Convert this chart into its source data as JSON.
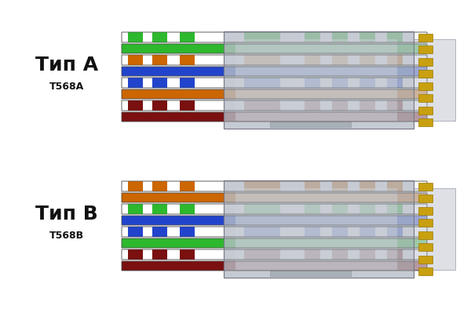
{
  "background_color": "#ffffff",
  "label_A": "Тип A",
  "label_A_sub": "T568A",
  "label_B": "Тип B",
  "label_B_sub": "T568B",
  "label_fontsize": 18,
  "sublabel_fontsize": 9,
  "T568A_wires": [
    {
      "base": "#ffffff",
      "stripe": "#2db82d",
      "solid": false
    },
    {
      "base": "#2db82d",
      "stripe": null,
      "solid": true
    },
    {
      "base": "#ffffff",
      "stripe": "#cc6600",
      "solid": false
    },
    {
      "base": "#2244cc",
      "stripe": null,
      "solid": true
    },
    {
      "base": "#ffffff",
      "stripe": "#2244cc",
      "solid": false
    },
    {
      "base": "#cc6600",
      "stripe": null,
      "solid": true
    },
    {
      "base": "#ffffff",
      "stripe": "#7a1010",
      "solid": false
    },
    {
      "base": "#7a1010",
      "stripe": null,
      "solid": true
    }
  ],
  "T568B_wires": [
    {
      "base": "#ffffff",
      "stripe": "#cc6600",
      "solid": false
    },
    {
      "base": "#cc6600",
      "stripe": null,
      "solid": true
    },
    {
      "base": "#ffffff",
      "stripe": "#2db82d",
      "solid": false
    },
    {
      "base": "#2244cc",
      "stripe": null,
      "solid": true
    },
    {
      "base": "#ffffff",
      "stripe": "#2244cc",
      "solid": false
    },
    {
      "base": "#2db82d",
      "stripe": null,
      "solid": true
    },
    {
      "base": "#ffffff",
      "stripe": "#7a1010",
      "solid": false
    },
    {
      "base": "#7a1010",
      "stripe": null,
      "solid": true
    }
  ],
  "fig_width": 6.0,
  "fig_height": 4.08,
  "dpi": 100
}
